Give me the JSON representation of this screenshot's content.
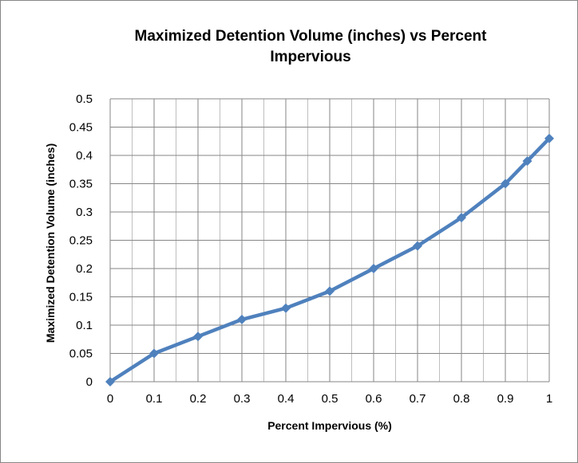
{
  "chart_data": {
    "type": "line",
    "title_line1": "Maximized Detention Volume (inches) vs Percent",
    "title_line2": "Impervious",
    "xlabel": "Percent Impervious (%)",
    "ylabel": "Maximized Detention Volume (inches)",
    "x_ticks": [
      "0",
      "0.1",
      "0.2",
      "0.3",
      "0.4",
      "0.5",
      "0.6",
      "0.7",
      "0.8",
      "0.9",
      "1"
    ],
    "y_ticks": [
      "0",
      "0.05",
      "0.1",
      "0.15",
      "0.2",
      "0.25",
      "0.3",
      "0.35",
      "0.4",
      "0.45",
      "0.5"
    ],
    "xlim": [
      0,
      1
    ],
    "ylim": [
      0,
      0.5
    ],
    "grid": true,
    "legend": "none",
    "series_color": "#4f81bd",
    "series": [
      {
        "x": [
          0,
          0.1,
          0.2,
          0.3,
          0.4,
          0.5,
          0.6,
          0.7,
          0.8,
          0.9,
          0.95,
          1
        ],
        "y": [
          0,
          0.05,
          0.08,
          0.11,
          0.13,
          0.16,
          0.2,
          0.24,
          0.29,
          0.35,
          0.39,
          0.43
        ]
      }
    ]
  }
}
